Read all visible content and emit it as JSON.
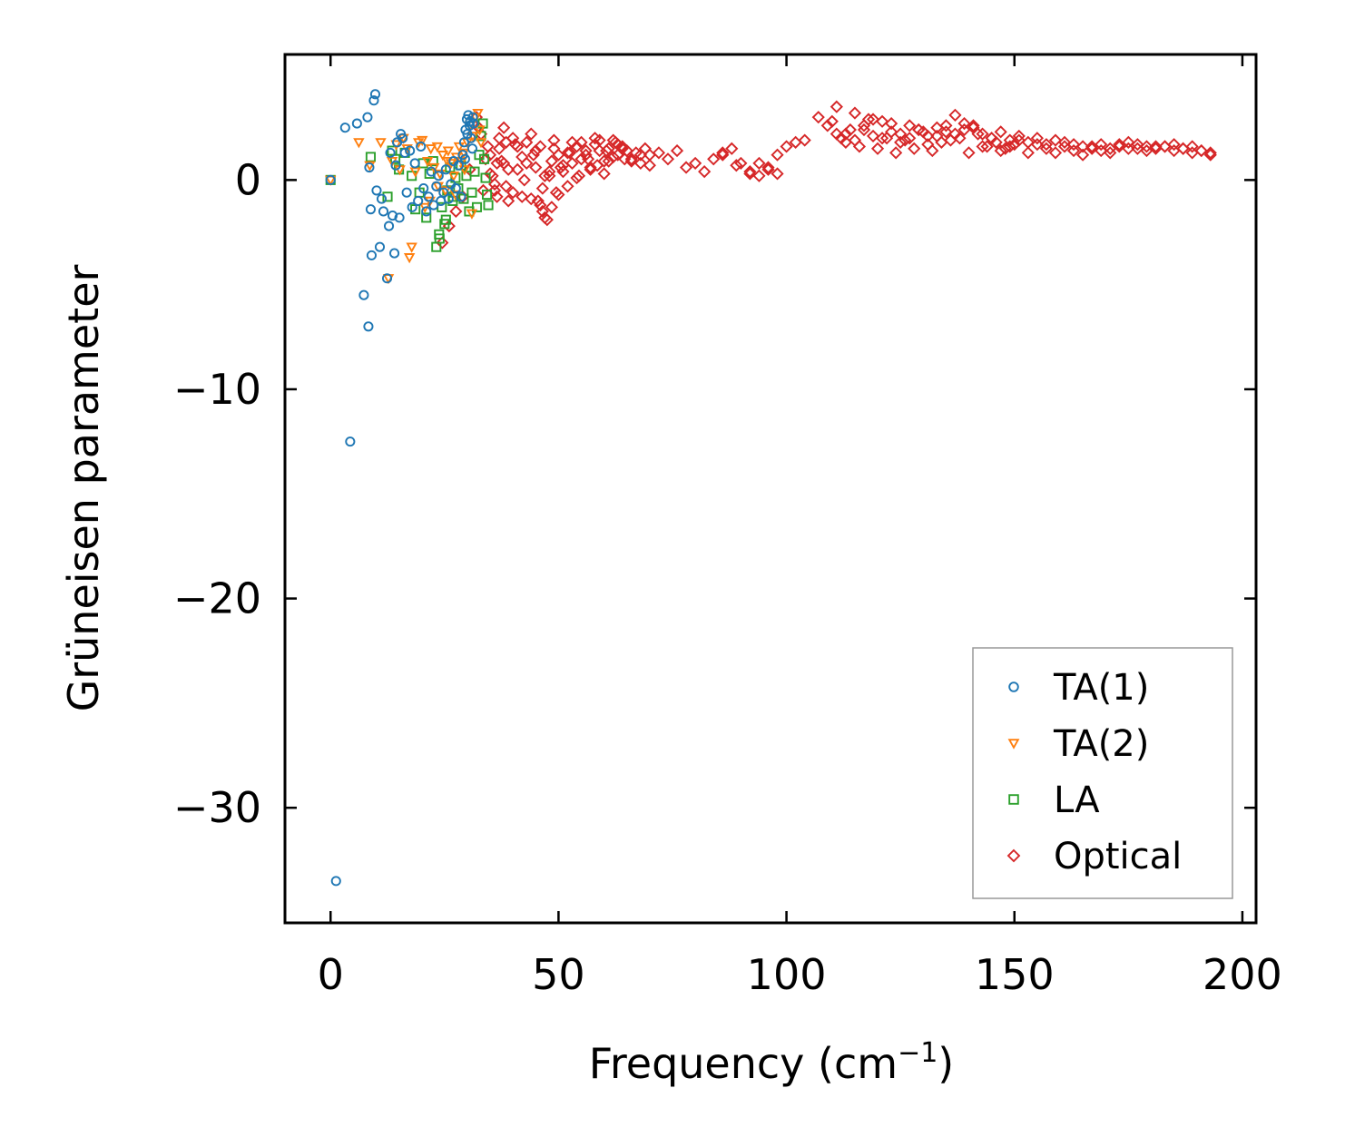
{
  "chart_data": {
    "type": "scatter",
    "title": "",
    "xlabel": "Frequency (cm",
    "xlabel_sup": "−1",
    "xlabel_end": ")",
    "ylabel": "Grüneisen parameter",
    "xlim": [
      -10,
      203
    ],
    "ylim": [
      -35.5,
      6
    ],
    "xticks": [
      0,
      50,
      100,
      150,
      200
    ],
    "yticks": [
      0,
      -10,
      -20,
      -30
    ],
    "xtick_labels": [
      "0",
      "50",
      "100",
      "150",
      "200"
    ],
    "ytick_labels": [
      "0",
      "−10",
      "−20",
      "−30"
    ],
    "legend_position": "bottom-right",
    "series": [
      {
        "name": "TA(1)",
        "marker": "circle",
        "color": "#1f77b4",
        "x": [
          0,
          1.2,
          3.2,
          4.3,
          5.8,
          7.3,
          8.1,
          8.3,
          8.5,
          8.8,
          9.0,
          9.5,
          9.8,
          10.1,
          10.8,
          11.2,
          11.6,
          12.4,
          12.8,
          13.1,
          13.6,
          14.0,
          14.3,
          14.6,
          15.1,
          15.4,
          15.8,
          16.3,
          16.7,
          17.4,
          17.9,
          18.5,
          19.2,
          19.8,
          20.4,
          21.0,
          21.5,
          22.1,
          22.6,
          23.2,
          23.7,
          24.2,
          24.8,
          25.3,
          25.9,
          26.4,
          27.0,
          27.5,
          28.1,
          28.6,
          29.0,
          29.3,
          29.6,
          29.9,
          30.2,
          30.5,
          30.8,
          31.1,
          31.4,
          29.5,
          30.0,
          30.6,
          31.2
        ],
        "y": [
          0,
          -33.5,
          2.5,
          -12.5,
          2.7,
          -5.5,
          3.0,
          -7.0,
          0.6,
          -1.4,
          -3.6,
          3.8,
          4.1,
          -0.5,
          -3.2,
          -0.9,
          -1.5,
          -4.7,
          -2.2,
          1.3,
          -1.7,
          -3.5,
          0.7,
          1.8,
          -1.8,
          2.2,
          2.0,
          1.3,
          -0.6,
          1.4,
          -1.3,
          0.8,
          -1.0,
          1.6,
          -0.4,
          -1.5,
          -0.8,
          0.4,
          -1.2,
          -0.3,
          0.2,
          -1.0,
          -0.6,
          0.5,
          -0.9,
          -0.2,
          0.9,
          -0.4,
          0.7,
          -0.8,
          1.2,
          1.8,
          2.4,
          2.9,
          3.1,
          2.6,
          2.0,
          1.5,
          2.7,
          1.0,
          2.2,
          2.8,
          3.0
        ]
      },
      {
        "name": "TA(2)",
        "marker": "triangle-down",
        "color": "#ff7f0e",
        "x": [
          0,
          6.2,
          8.6,
          11.0,
          12.7,
          13.5,
          14.4,
          15.2,
          16.0,
          16.8,
          17.3,
          17.8,
          18.6,
          19.3,
          20.1,
          20.7,
          21.3,
          22.0,
          22.7,
          23.4,
          24.0,
          24.6,
          25.2,
          25.8,
          26.4,
          27.0,
          27.6,
          28.2,
          28.8,
          29.4,
          30.0,
          30.6,
          31.2,
          31.8,
          32.3,
          32.7,
          33.0,
          21.8,
          23.6,
          25.6,
          27.4,
          29.2,
          31.0
        ],
        "y": [
          0,
          1.8,
          0.7,
          1.8,
          -4.7,
          0.9,
          1.7,
          0.5,
          2.0,
          1.5,
          -3.7,
          -3.2,
          0.4,
          1.8,
          1.9,
          -1.3,
          0.9,
          1.5,
          0.6,
          1.6,
          0.3,
          1.2,
          -0.5,
          1.4,
          0.8,
          0.2,
          1.1,
          1.6,
          0.9,
          0.5,
          1.8,
          2.6,
          2.1,
          3.0,
          3.2,
          2.4,
          1.8,
          -1.0,
          -0.3,
          0.9,
          -0.7,
          1.3,
          -1.6
        ]
      },
      {
        "name": "LA",
        "marker": "square",
        "color": "#2ca02c",
        "x": [
          0,
          8.8,
          12.5,
          13.5,
          14.2,
          15.0,
          16.3,
          17.8,
          18.6,
          19.5,
          20.3,
          21.0,
          21.7,
          22.5,
          23.2,
          23.8,
          24.4,
          25.0,
          25.6,
          26.2,
          26.8,
          27.4,
          28.0,
          28.6,
          29.2,
          29.8,
          30.4,
          31.0,
          31.6,
          32.1,
          32.6,
          33.0,
          33.4,
          33.7,
          34.0,
          34.3,
          34.6,
          23.9,
          25.3,
          26.9
        ],
        "y": [
          0,
          1.1,
          -0.8,
          1.4,
          1.0,
          0.5,
          1.3,
          0.2,
          -1.4,
          -0.6,
          0.8,
          -1.8,
          0.3,
          0.9,
          -3.2,
          -2.6,
          -1.3,
          -2.1,
          -0.5,
          0.6,
          -1.0,
          0.1,
          -0.4,
          0.7,
          -0.9,
          0.2,
          -1.5,
          -0.6,
          0.4,
          -1.3,
          1.2,
          2.1,
          2.7,
          1.0,
          0.1,
          -0.7,
          -1.2,
          -2.8,
          -1.9,
          -0.8
        ]
      },
      {
        "name": "Optical",
        "marker": "diamond",
        "color": "#d62728",
        "x": [
          24.5,
          26.0,
          27.5,
          29.0,
          30.5,
          32.0,
          33.0,
          34.0,
          35.0,
          36.0,
          37.0,
          38.0,
          39.0,
          40.0,
          41.0,
          42.0,
          43.0,
          44.0,
          45.0,
          46.0,
          47.0,
          48.0,
          49.0,
          50.0,
          51.0,
          52.0,
          53.0,
          54.0,
          55.0,
          56.0,
          57.0,
          58.0,
          59.0,
          60.0,
          61.0,
          62.0,
          63.0,
          64.0,
          65.0,
          66.0,
          67.0,
          68.0,
          69.0,
          70.0,
          72.0,
          74.0,
          76.0,
          78.0,
          80.0,
          82.0,
          84.0,
          86.0,
          88.0,
          90.0,
          92.0,
          94.0,
          96.0,
          98.0,
          100.0,
          102.0,
          104.0,
          107.0,
          109.0,
          111.0,
          113.0,
          115.0,
          117.0,
          119.0,
          121.0,
          123.0,
          125.0,
          127.0,
          129.0,
          131.0,
          133.0,
          135.0,
          137.0,
          139.0,
          141.0,
          143.0,
          145.0,
          147.0,
          149.0,
          151.0,
          153.0,
          155.0,
          157.0,
          159.0,
          161.0,
          163.0,
          165.0,
          167.0,
          169.0,
          171.0,
          173.0,
          175.0,
          177.0,
          179.0,
          181.0,
          183.0,
          185.0,
          187.0,
          189.0,
          191.0,
          193.0,
          35.0,
          37.0,
          39.0,
          41.0,
          43.0,
          45.0,
          47.0,
          49.0,
          51.0,
          53.0,
          55.0,
          57.0,
          59.0,
          61.0,
          63.0,
          36.0,
          38.0,
          40.0,
          42.0,
          44.0,
          46.0,
          48.0,
          50.0,
          52.0,
          54.0,
          56.0,
          58.0,
          60.0,
          62.0,
          64.0,
          66.0,
          68.0,
          70.0,
          36.5,
          38.5,
          40.5,
          42.5,
          44.5,
          46.5,
          48.5,
          50.5,
          52.5,
          54.5,
          56.5,
          58.5,
          60.5,
          62.5,
          64.5,
          45.5,
          46.5,
          47.5,
          48.5,
          49.5,
          86.0,
          89.0,
          92.0,
          94.0,
          96.0,
          98.0,
          110.0,
          112.0,
          114.0,
          116.0,
          118.0,
          120.0,
          122.0,
          124.0,
          126.0,
          128.0,
          130.0,
          132.0,
          134.0,
          136.0,
          138.0,
          140.0,
          142.0,
          144.0,
          146.0,
          148.0,
          150.0,
          111.0,
          113.0,
          115.0,
          117.0,
          119.0,
          121.0,
          123.0,
          125.0,
          127.0,
          129.0,
          131.0,
          133.0,
          135.0,
          137.0,
          139.0,
          141.0,
          143.0,
          145.0,
          147.0,
          149.0,
          151.0,
          153.0,
          155.0,
          157.0,
          159.0,
          161.0,
          163.0,
          165.0,
          167.0,
          169.0,
          171.0,
          173.0,
          175.0,
          177.0,
          179.0,
          181.0,
          183.0,
          185.0,
          187.0,
          189.0,
          191.0,
          193.0,
          32.5,
          33.5,
          34.5,
          35.5,
          36.5,
          37.5,
          38.5
        ],
        "y": [
          -3.0,
          -2.2,
          -1.5,
          -0.8,
          0.5,
          3.0,
          2.2,
          1.0,
          0.3,
          -0.5,
          1.5,
          0.8,
          -1.0,
          2.0,
          0.5,
          -0.8,
          1.8,
          2.2,
          0.6,
          -1.2,
          -1.8,
          0.2,
          1.5,
          1.2,
          0.4,
          -0.3,
          0.8,
          1.6,
          1.8,
          1.2,
          0.5,
          1.7,
          1.4,
          0.9,
          1.5,
          1.9,
          1.2,
          1.6,
          1.4,
          1.0,
          1.3,
          0.8,
          1.5,
          1.2,
          1.3,
          1.0,
          1.4,
          0.6,
          0.8,
          0.4,
          1.0,
          1.3,
          1.5,
          0.8,
          0.3,
          0.8,
          0.5,
          1.2,
          1.6,
          1.8,
          1.9,
          3.0,
          2.6,
          3.5,
          2.2,
          3.2,
          2.4,
          2.9,
          2.0,
          2.7,
          2.2,
          2.6,
          2.4,
          2.1,
          2.5,
          2.3,
          3.1,
          2.4,
          2.6,
          2.2,
          2.0,
          2.3,
          1.9,
          2.1,
          1.8,
          2.0,
          1.7,
          1.9,
          1.6,
          1.7,
          1.6,
          1.5,
          1.7,
          1.5,
          1.6,
          1.5,
          1.7,
          1.4,
          1.6,
          1.6,
          1.7,
          1.5,
          1.6,
          1.4,
          1.3,
          1.2,
          2.0,
          0.5,
          1.6,
          0.8,
          1.4,
          0.2,
          1.9,
          0.7,
          1.8,
          1.0,
          0.6,
          1.9,
          0.9,
          1.7,
          -0.2,
          2.5,
          -0.6,
          1.1,
          -0.9,
          1.6,
          0.4,
          -0.7,
          1.3,
          0.1,
          1.4,
          2.0,
          0.3,
          1.1,
          1.5,
          0.9,
          1.2,
          0.7,
          0.8,
          -0.3,
          1.7,
          0.0,
          1.2,
          -0.4,
          0.9,
          0.6,
          1.3,
          0.2,
          1.0,
          0.7,
          1.4,
          1.8,
          1.0,
          -1.0,
          -1.5,
          -1.9,
          -1.3,
          -0.6,
          1.2,
          0.7,
          0.4,
          0.2,
          0.6,
          0.3,
          2.8,
          2.0,
          2.4,
          1.6,
          2.9,
          1.5,
          2.0,
          1.3,
          1.9,
          1.5,
          2.3,
          1.4,
          1.8,
          1.9,
          2.0,
          1.3,
          2.2,
          1.6,
          1.8,
          1.5,
          1.7,
          2.2,
          1.8,
          1.9,
          2.6,
          2.1,
          2.8,
          2.3,
          1.8,
          2.0,
          2.4,
          1.7,
          2.1,
          2.6,
          2.2,
          2.7,
          2.5,
          1.6,
          2.0,
          1.4,
          1.6,
          1.9,
          1.3,
          1.7,
          1.5,
          1.3,
          1.8,
          1.4,
          1.2,
          1.6,
          1.4,
          1.3,
          1.7,
          1.8,
          1.5,
          1.6,
          1.5,
          1.6,
          1.4,
          1.5,
          1.3,
          1.4,
          1.2,
          2.5,
          -0.5,
          1.6,
          0.2,
          -0.8,
          0.9,
          1.8
        ]
      }
    ]
  }
}
